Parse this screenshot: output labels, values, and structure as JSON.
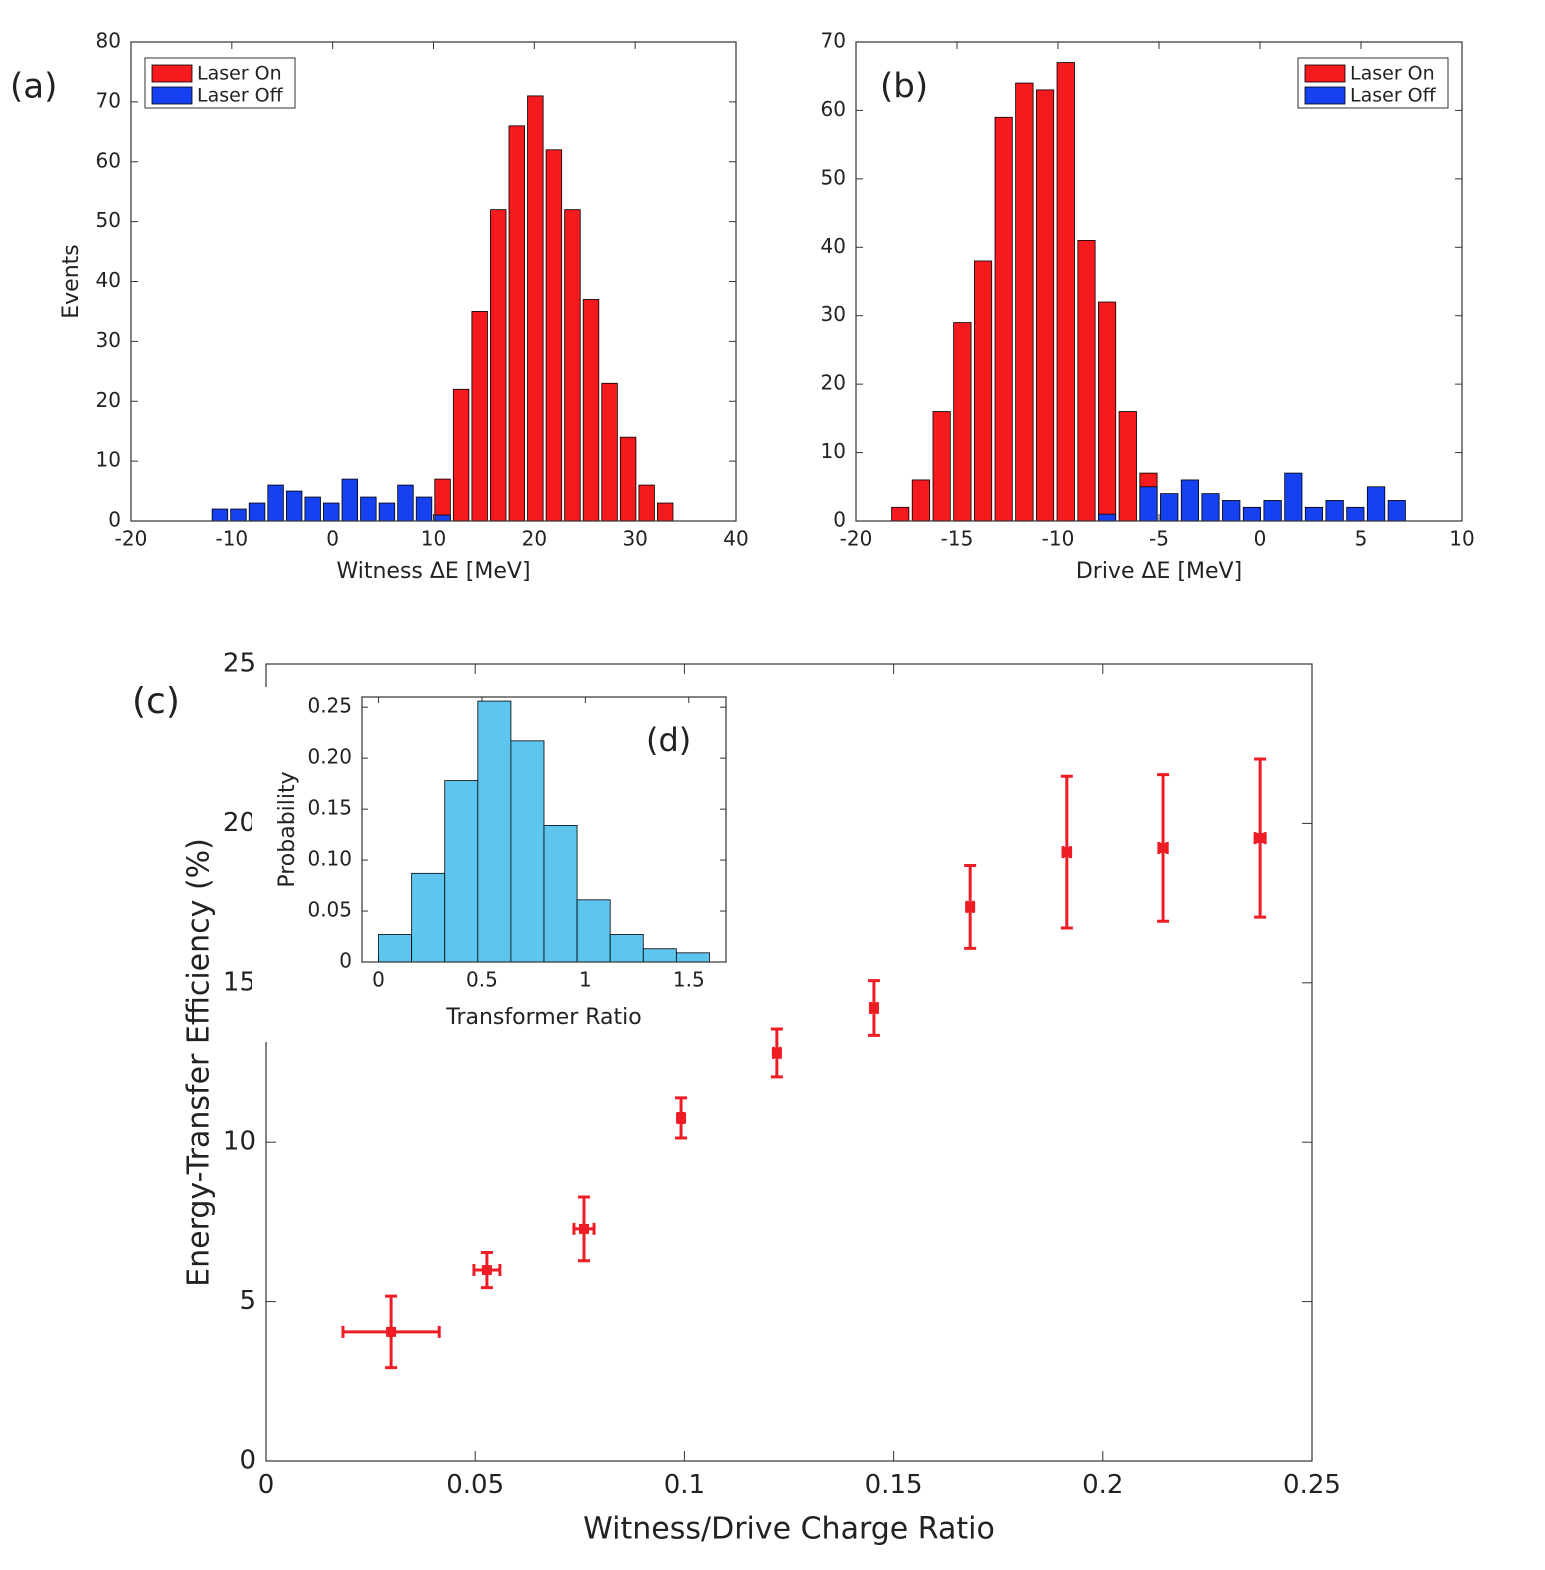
{
  "chart_data": [
    {
      "type": "histogram",
      "panel_label": "(a)",
      "xlabel": "Witness ΔE [MeV]",
      "ylabel": "Events",
      "bins": [
        -12.1,
        -10.26,
        -8.42,
        -6.58,
        -4.74,
        -2.9,
        -1.06,
        0.78,
        2.62,
        4.46,
        6.3,
        8.14,
        9.98,
        11.82,
        13.66,
        15.5,
        17.34,
        19.18,
        21.02,
        22.86,
        24.7,
        26.54,
        28.38,
        30.22,
        32.06,
        33.9
      ],
      "series": [
        {
          "name": "Laser On",
          "color": "#f51a1e",
          "values": [
            0,
            0,
            0,
            0,
            0,
            0,
            0,
            0,
            0,
            0,
            0,
            0,
            7,
            22,
            35,
            52,
            66,
            71,
            62,
            52,
            37,
            23,
            14,
            6,
            3
          ]
        },
        {
          "name": "Laser Off",
          "color": "#1641f0",
          "values": [
            2,
            2,
            3,
            6,
            5,
            4,
            3,
            7,
            4,
            3,
            6,
            4,
            1,
            0,
            0,
            0,
            0,
            0,
            0,
            0,
            0,
            0,
            0,
            0,
            0
          ]
        }
      ],
      "xlim": [
        -20,
        40
      ],
      "xticks": [
        -20,
        -10,
        0,
        10,
        20,
        30,
        40
      ],
      "ylim": [
        0,
        80
      ],
      "yticks": [
        0,
        10,
        20,
        30,
        40,
        50,
        60,
        70,
        80
      ],
      "legend": "upper left"
    },
    {
      "type": "histogram",
      "panel_label": "(b)",
      "xlabel": "Drive ΔE [MeV]",
      "bins": [
        -18.32,
        -17.3,
        -16.27,
        -15.25,
        -14.22,
        -13.2,
        -12.18,
        -11.15,
        -10.13,
        -9.1,
        -8.08,
        -7.06,
        -6.03,
        -5.01,
        -3.98,
        -2.96,
        -1.94,
        -0.91,
        0.11,
        1.14,
        2.16,
        3.18,
        4.21,
        5.23,
        6.26,
        7.28
      ],
      "series": [
        {
          "name": "Laser On",
          "color": "#f51a1e",
          "values": [
            2,
            6,
            16,
            29,
            38,
            59,
            64,
            63,
            67,
            41,
            32,
            16,
            7,
            0,
            0,
            0,
            0,
            0,
            0,
            0,
            0,
            0,
            0,
            0,
            0
          ]
        },
        {
          "name": "Laser Off",
          "color": "#1641f0",
          "values": [
            0,
            0,
            0,
            0,
            0,
            0,
            0,
            0,
            0,
            0,
            1,
            0,
            5,
            4,
            6,
            4,
            3,
            2,
            3,
            7,
            2,
            3,
            2,
            5,
            3
          ]
        }
      ],
      "xlim": [
        -20,
        10
      ],
      "xticks": [
        -20,
        -15,
        -10,
        -5,
        0,
        5,
        10
      ],
      "ylim": [
        0,
        70
      ],
      "yticks": [
        0,
        10,
        20,
        30,
        40,
        50,
        60,
        70
      ],
      "legend": "upper right"
    },
    {
      "type": "errorbar",
      "panel_label": "(c)",
      "xlabel": "Witness/Drive Charge Ratio",
      "ylabel": "Energy-Transfer Efficiency (%)",
      "color": "#ee1c25",
      "x": [
        0.0299,
        0.0528,
        0.076,
        0.0992,
        0.1221,
        0.1453,
        0.1683,
        0.1914,
        0.2144,
        0.2376
      ],
      "values": [
        4.05,
        5.99,
        7.28,
        10.76,
        12.8,
        14.21,
        17.38,
        19.1,
        19.23,
        19.54
      ],
      "yerr": [
        1.12,
        0.55,
        1.0,
        0.63,
        0.75,
        0.86,
        1.3,
        2.38,
        2.3,
        2.48
      ],
      "xerr": [
        0.0115,
        0.0031,
        0.0024,
        0.0007,
        0.0008,
        0.0008,
        0.0008,
        0.0009,
        0.001,
        0.0012
      ],
      "xlim": [
        0,
        0.25
      ],
      "xticks": [
        0,
        0.05,
        0.1,
        0.15,
        0.2,
        0.25
      ],
      "ylim": [
        0,
        25
      ],
      "yticks": [
        0,
        5,
        10,
        15,
        20,
        25
      ]
    },
    {
      "type": "histogram",
      "panel_label": "(d)",
      "xlabel": "Transformer Ratio",
      "ylabel": "Probability",
      "bins": [
        0,
        0.16,
        0.32,
        0.48,
        0.64,
        0.8,
        0.96,
        1.12,
        1.28,
        1.44,
        1.6
      ],
      "series": [
        {
          "color": "#5ec6ee",
          "values": [
            0.027,
            0.087,
            0.178,
            0.256,
            0.217,
            0.134,
            0.061,
            0.027,
            0.013,
            0.009
          ]
        }
      ],
      "xlim": [
        -0.08,
        1.68
      ],
      "xticks": [
        0,
        0.5,
        1,
        1.5
      ],
      "ylim": [
        0,
        0.26
      ],
      "yticks": [
        0,
        0.05,
        {
          "value": 0.1,
          "label": "0.10"
        },
        0.15,
        {
          "value": 0.2,
          "label": "0.20"
        },
        0.25
      ]
    }
  ]
}
